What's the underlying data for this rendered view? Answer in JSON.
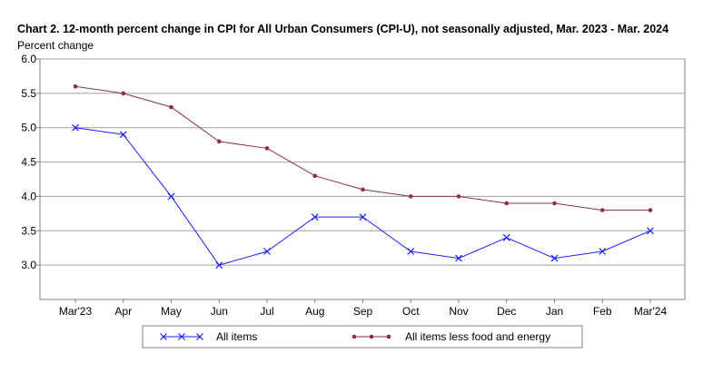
{
  "chart_data": {
    "type": "line",
    "title": "Chart 2. 12-month percent change in CPI for All Urban Consumers (CPI-U), not seasonally adjusted, Mar. 2023 - Mar. 2024",
    "ylabel": "Percent change",
    "xlabel": "",
    "categories": [
      "Mar'23",
      "Apr",
      "May",
      "Jun",
      "Jul",
      "Aug",
      "Sep",
      "Oct",
      "Nov",
      "Dec",
      "Jan",
      "Feb",
      "Mar'24"
    ],
    "ylim": [
      3.0,
      6.0
    ],
    "y_axis_min_drawn": 2.5,
    "yticks": [
      "3.0",
      "3.5",
      "4.0",
      "4.5",
      "5.0",
      "5.5",
      "6.0"
    ],
    "grid": true,
    "legend_position": "bottom",
    "series": [
      {
        "name": "All items",
        "color": "#1f1fff",
        "marker": "x",
        "values": [
          5.0,
          4.9,
          4.0,
          3.0,
          3.2,
          3.7,
          3.7,
          3.2,
          3.1,
          3.4,
          3.1,
          3.2,
          3.5
        ]
      },
      {
        "name": "All items less food and energy",
        "color": "#8b2d52",
        "marker": "circle",
        "values": [
          5.6,
          5.5,
          5.3,
          4.8,
          4.7,
          4.3,
          4.1,
          4.0,
          4.0,
          3.9,
          3.9,
          3.8,
          3.8
        ]
      }
    ]
  }
}
